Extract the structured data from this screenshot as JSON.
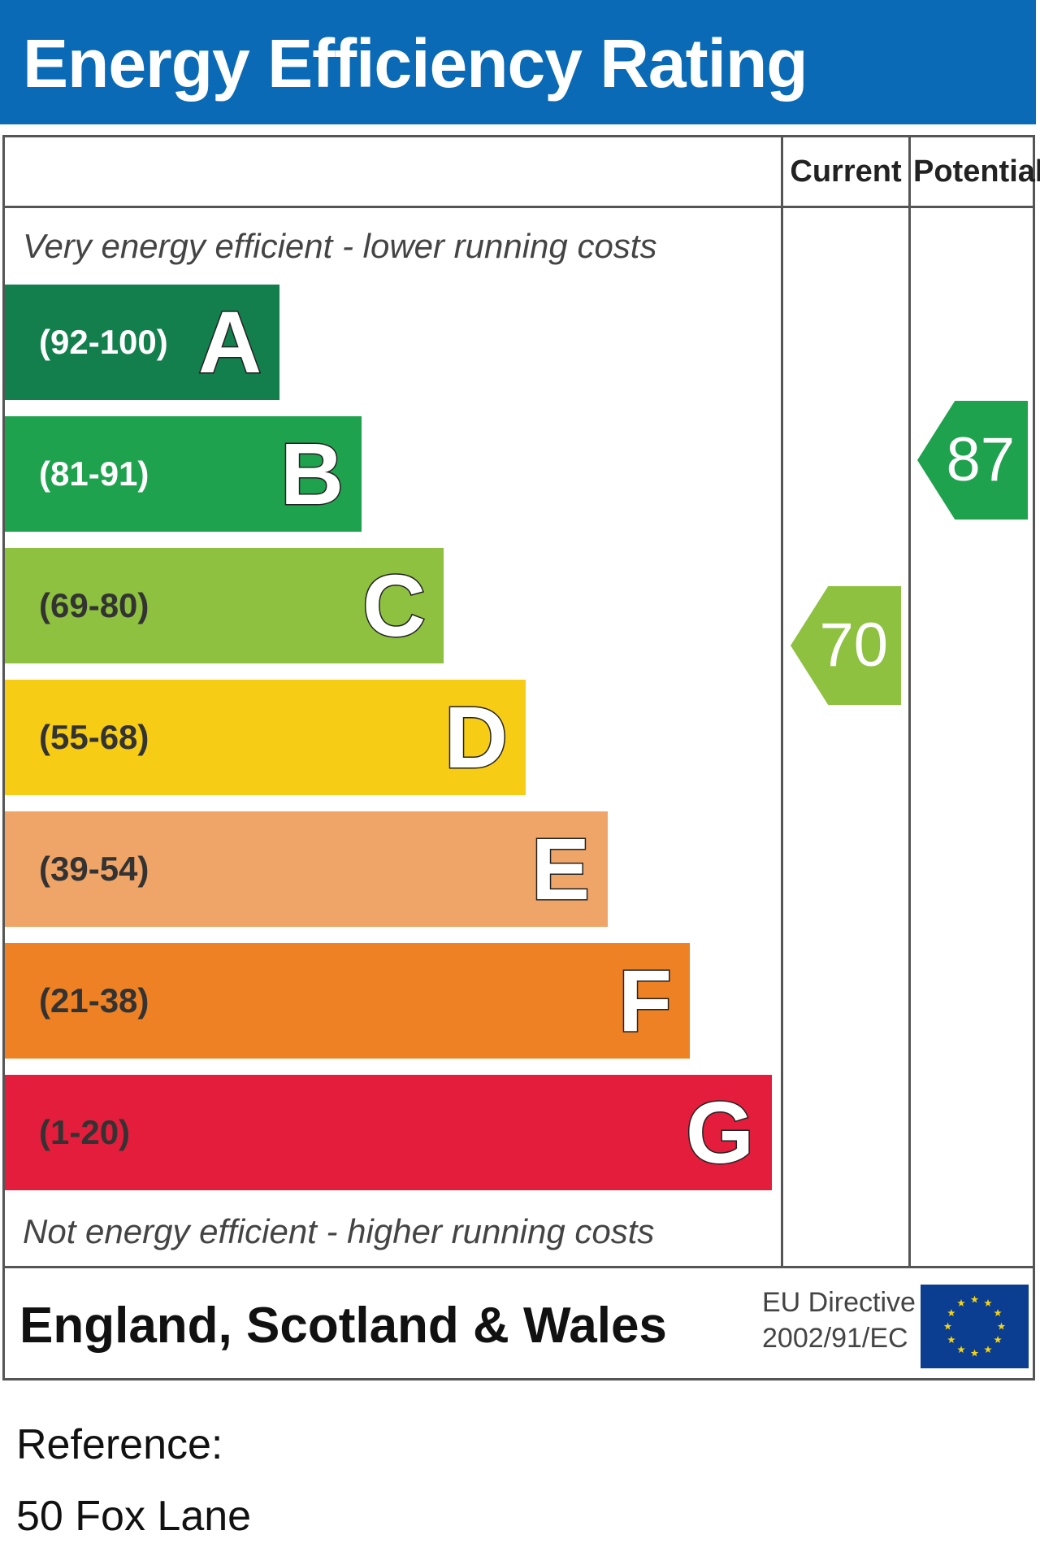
{
  "title": "Energy Efficiency Rating",
  "column_headers": {
    "current": "Current",
    "potential": "Potential"
  },
  "notes": {
    "top": "Very energy efficient - lower running costs",
    "bottom": "Not energy efficient - higher running costs"
  },
  "chart_data": {
    "type": "bar",
    "categories": [
      "A",
      "B",
      "C",
      "D",
      "E",
      "F",
      "G"
    ],
    "bands": [
      {
        "letter": "A",
        "range": "(92-100)",
        "color": "#127f4c",
        "range_color": "#ffffff"
      },
      {
        "letter": "B",
        "range": "(81-91)",
        "color": "#1fa24e",
        "range_color": "#ffffff"
      },
      {
        "letter": "C",
        "range": "(69-80)",
        "color": "#8dc13f",
        "range_color": "#333333"
      },
      {
        "letter": "D",
        "range": "(55-68)",
        "color": "#f6cc15",
        "range_color": "#333333"
      },
      {
        "letter": "E",
        "range": "(39-54)",
        "color": "#f0a568",
        "range_color": "#333333"
      },
      {
        "letter": "F",
        "range": "(21-38)",
        "color": "#ee8124",
        "range_color": "#333333"
      },
      {
        "letter": "G",
        "range": "(1-20)",
        "color": "#e31d3b",
        "range_color": "#333333"
      }
    ],
    "current": {
      "value": 70,
      "label": "70",
      "color": "#8dc13f"
    },
    "potential": {
      "value": 87,
      "label": "87",
      "color": "#1fa24e"
    }
  },
  "footer": {
    "region": "England, Scotland & Wales",
    "eu_directive_line1": "EU Directive",
    "eu_directive_line2": "2002/91/EC",
    "flag_color": "#0b3d91",
    "star_color": "#f4d311",
    "reference_label": "Reference:",
    "reference_value": "50 Fox Lane"
  }
}
